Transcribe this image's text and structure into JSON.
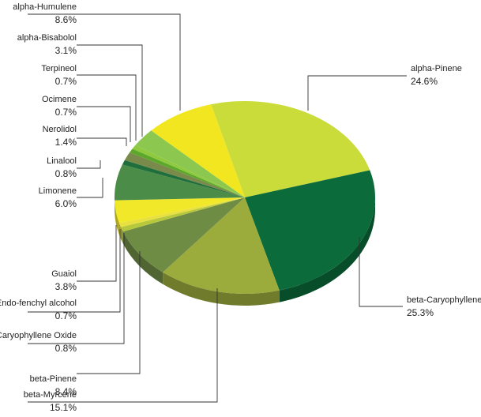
{
  "chart_data": {
    "type": "pie",
    "categories": [
      "alpha-Pinene",
      "beta-Caryophyllene",
      "beta-Myrcene",
      "beta-Pinene",
      "Caryophyllene Oxide",
      "Endo-fenchyl alcohol",
      "Guaiol",
      "Limonene",
      "Linalool",
      "Nerolidol",
      "Ocimene",
      "Terpineol",
      "alpha-Bisabolol",
      "alpha-Humulene"
    ],
    "values": [
      24.6,
      25.3,
      15.1,
      8.4,
      0.8,
      0.7,
      3.8,
      6.0,
      0.8,
      1.4,
      0.7,
      0.7,
      3.1,
      8.6
    ],
    "value_labels": [
      "24.6%",
      "25.3%",
      "15.1%",
      "8.4%",
      "0.8%",
      "0.7%",
      "3.8%",
      "6.0%",
      "0.8%",
      "1.4%",
      "0.7%",
      "0.7%",
      "3.1%",
      "8.6%"
    ],
    "colors": [
      "#c9dc3a",
      "#0b6b3a",
      "#9bab3c",
      "#6f8c45",
      "#b8c83c",
      "#e8e040",
      "#f2e82a",
      "#4b8c48",
      "#1f6e3c",
      "#7a8a4a",
      "#5ca82a",
      "#8fca3e",
      "#8cc850",
      "#f2e620"
    ]
  }
}
